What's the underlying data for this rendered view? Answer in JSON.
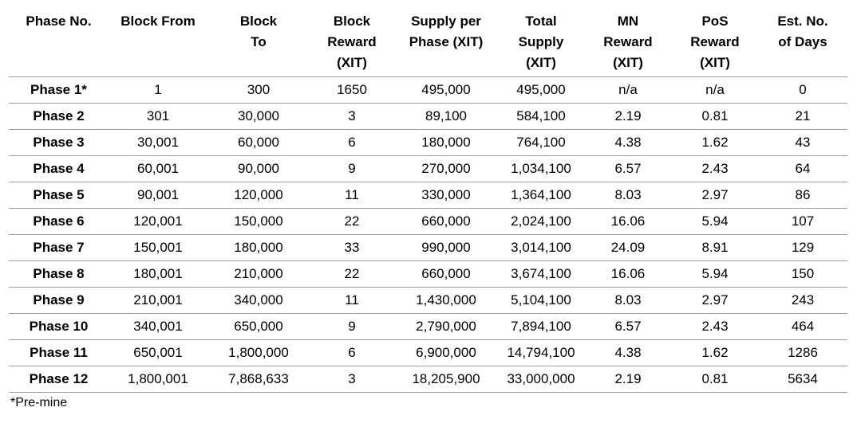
{
  "table": {
    "headers": [
      [
        "Phase No."
      ],
      [
        "Block From"
      ],
      [
        "Block",
        "To"
      ],
      [
        "Block",
        "Reward",
        "(XIT)"
      ],
      [
        "Supply per",
        "Phase (XIT)"
      ],
      [
        "Total",
        "Supply",
        "(XIT)"
      ],
      [
        "MN",
        "Reward",
        "(XIT)"
      ],
      [
        "PoS",
        "Reward",
        "(XIT)"
      ],
      [
        "Est. No.",
        "of Days"
      ]
    ],
    "rows": [
      [
        "Phase 1*",
        "1",
        "300",
        "1650",
        "495,000",
        "495,000",
        "n/a",
        "n/a",
        "0"
      ],
      [
        "Phase 2",
        "301",
        "30,000",
        "3",
        "89,100",
        "584,100",
        "2.19",
        "0.81",
        "21"
      ],
      [
        "Phase 3",
        "30,001",
        "60,000",
        "6",
        "180,000",
        "764,100",
        "4.38",
        "1.62",
        "43"
      ],
      [
        "Phase 4",
        "60,001",
        "90,000",
        "9",
        "270,000",
        "1,034,100",
        "6.57",
        "2.43",
        "64"
      ],
      [
        "Phase 5",
        "90,001",
        "120,000",
        "11",
        "330,000",
        "1,364,100",
        "8.03",
        "2.97",
        "86"
      ],
      [
        "Phase 6",
        "120,001",
        "150,000",
        "22",
        "660,000",
        "2,024,100",
        "16.06",
        "5.94",
        "107"
      ],
      [
        "Phase 7",
        "150,001",
        "180,000",
        "33",
        "990,000",
        "3,014,100",
        "24.09",
        "8.91",
        "129"
      ],
      [
        "Phase 8",
        "180,001",
        "210,000",
        "22",
        "660,000",
        "3,674,100",
        "16.06",
        "5.94",
        "150"
      ],
      [
        "Phase 9",
        "210,001",
        "340,000",
        "11",
        "1,430,000",
        "5,104,100",
        "8.03",
        "2.97",
        "243"
      ],
      [
        "Phase 10",
        "340,001",
        "650,000",
        "9",
        "2,790,000",
        "7,894,100",
        "6.57",
        "2.43",
        "464"
      ],
      [
        "Phase 11",
        "650,001",
        "1,800,000",
        "6",
        "6,900,000",
        "14,794,100",
        "4.38",
        "1.62",
        "1286"
      ],
      [
        "Phase 12",
        "1,800,001",
        "7,868,633",
        "3",
        "18,205,900",
        "33,000,000",
        "2.19",
        "0.81",
        "5634"
      ]
    ]
  },
  "footnote": "*Pre-mine",
  "colors": {
    "text": "#000000",
    "rule": "#9a9a9a",
    "background": "#ffffff"
  }
}
